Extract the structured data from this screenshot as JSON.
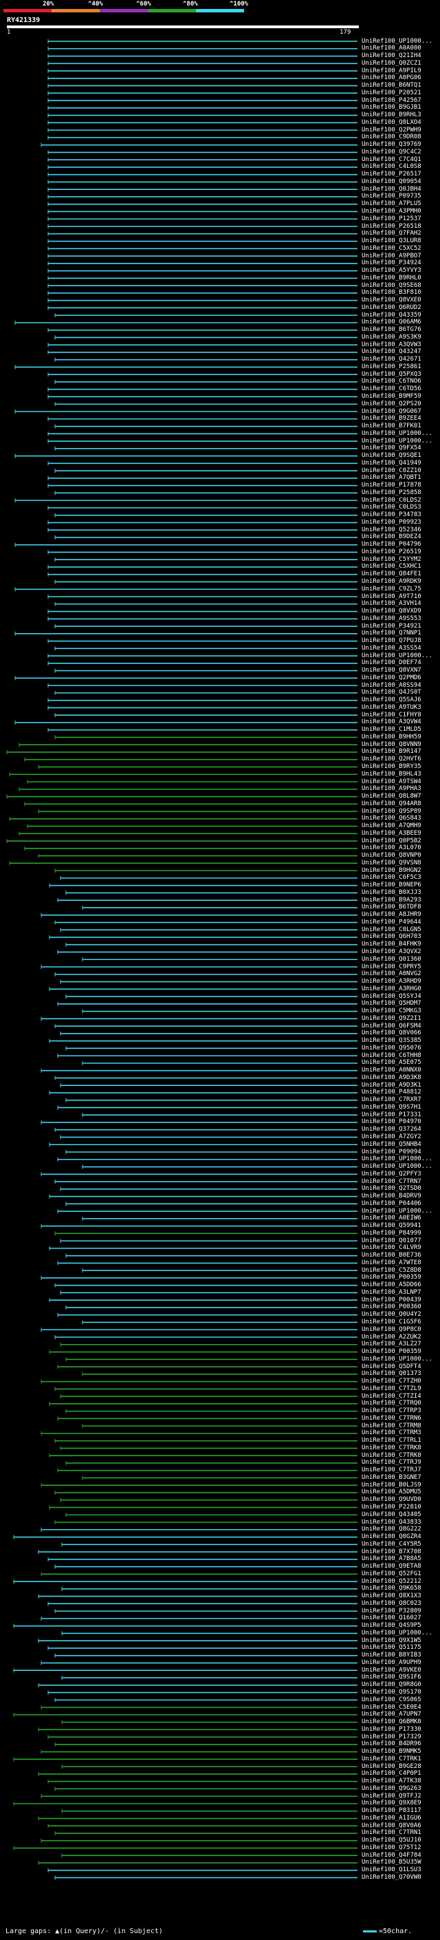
{
  "legend": {
    "labels": [
      "20%",
      "^40%",
      "^60%",
      "^80%",
      "^100%"
    ],
    "colors": [
      "#e0202a",
      "#e6822a",
      "#9b2fb8",
      "#29a62b",
      "#3fd5ee"
    ]
  },
  "query": {
    "title": "RY421339",
    "start": "1",
    "end": "179"
  },
  "footer": {
    "gaps_text": "Large gaps: ▲(in Query)/- (in Subject)",
    "scale_text": "=50char."
  },
  "hits": [
    "UniRef100_UP1000...",
    "UniRef100_A0A000",
    "UniRef100_Q21IH4",
    "UniRef100_Q0ZCZ1",
    "UniRef100_A9PIL9",
    "UniRef100_A0PG06",
    "UniRef100_B6NTQ1",
    "UniRef100_P20521",
    "UniRef100_P42567",
    "UniRef100_B9GJB1",
    "UniRef100_B9RHL3",
    "UniRef100_Q8LXO4",
    "UniRef100_Q2PWH9",
    "UniRef100_C9DR08",
    "UniRef100_Q39769",
    "UniRef100_Q9C4C2",
    "UniRef100_C7C4Q1",
    "UniRef100_C4L0S8",
    "UniRef100_P26517",
    "UniRef100_Q09054",
    "UniRef100_Q0JBH4",
    "UniRef100_P09735",
    "UniRef100_A7PLU5",
    "UniRef100_A3PMH0",
    "UniRef100_P12537",
    "UniRef100_P26518",
    "UniRef100_Q7FAH2",
    "UniRef100_Q3LUR8",
    "UniRef100_C5XC52",
    "UniRef100_A9PBO7",
    "UniRef100_P34924",
    "UniRef100_A5YVY3",
    "UniRef100_B9RHL0",
    "UniRef100_Q9SE68",
    "UniRef100_B3F810",
    "UniRef100_Q8VXE0",
    "UniRef100_Q6RUD2",
    "UniRef100_Q43359",
    "UniRef100_Q06AM6",
    "UniRef100_B6TG76",
    "UniRef100_A9S3K9",
    "UniRef100_A3QVW3",
    "UniRef100_Q43247",
    "UniRef100_Q42671",
    "UniRef100_P25861",
    "UniRef100_Q5PXQ3",
    "UniRef100_C6TNO6",
    "UniRef100_C6TD56",
    "UniRef100_B9MF59",
    "UniRef100_Q2PS20",
    "UniRef100_Q9G067",
    "UniRef100_B9ZEE4",
    "UniRef100_B7FK01",
    "UniRef100_UP1000...",
    "UniRef100_UP1000...",
    "UniRef100_Q9FX54",
    "UniRef100_Q9SQE1",
    "UniRef100_Q41949",
    "UniRef100_C0ZZ10",
    "UniRef100_A7QBT1",
    "UniRef100_P17878",
    "UniRef100_P25858",
    "UniRef100_C0LDS2",
    "UniRef100_C0LDS3",
    "UniRef100_P34783",
    "UniRef100_P09923",
    "UniRef100_Q52346",
    "UniRef100_B9DEZ4",
    "UniRef100_P04796",
    "UniRef100_P26519",
    "UniRef100_C5YYM2",
    "UniRef100_C5XHC1",
    "UniRef100_Q84FE1",
    "UniRef100_A9RDK9",
    "UniRef100_C9ZL75",
    "UniRef100_A9T710",
    "UniRef100_A3VH14",
    "UniRef100_Q8VXD9",
    "UniRef100_A9S553",
    "UniRef100_P34921",
    "UniRef100_Q7NNP1",
    "UniRef100_Q7PUJ8",
    "UniRef100_A3SS54",
    "UniRef100_UP1000...",
    "UniRef100_D0EF74",
    "UniRef100_Q8VXN7",
    "UniRef100_Q2PMD6",
    "UniRef100_A0SS94",
    "UniRef100_Q4JS0T",
    "UniRef100_Q5SAJ6",
    "UniRef100_A9TUK3",
    "UniRef100_C1FHY8",
    "UniRef100_A3QVW4",
    "UniRef100_C1MLD5",
    "UniRef100_B9HH59",
    "UniRef100_Q8VNN9",
    "UniRef100_B9R147",
    "UniRef100_Q2HVT6",
    "UniRef100_B9RY35",
    "UniRef100_B9HL43",
    "UniRef100_A9TSW4",
    "UniRef100_A9PHA3",
    "UniRef100_Q8L8W7",
    "UniRef100_Q94AR8",
    "UniRef100_Q9SP89",
    "UniRef100_Q6S843",
    "UniRef100_A7QMH9",
    "UniRef100_A3BEE9",
    "UniRef100_Q0P5B2",
    "UniRef100_A3L070",
    "UniRef100_Q8VNP0",
    "UniRef100_Q9VSN8",
    "UniRef100_B9HGN2",
    "UniRef100_C6F5C3",
    "UniRef100_B9NEP6",
    "UniRef100_B0XJJ3",
    "UniRef100_B9A293",
    "UniRef100_B6TDF8",
    "UniRef100_A8JHR9",
    "UniRef100_P49644",
    "UniRef100_C0LGN5",
    "UniRef100_Q6H703",
    "UniRef100_B4FHK9",
    "UniRef100_A3QVX2",
    "UniRef100_Q01360",
    "UniRef100_C9PRY5",
    "UniRef100_A0NVG2",
    "UniRef100_A3RHD9",
    "UniRef100_A3RHG0",
    "UniRef100_Q5SYJ4",
    "UniRef100_Q5HDM7",
    "UniRef100_C5MKG3",
    "UniRef100_Q9Z2I1",
    "UniRef100_Q6FSM4",
    "UniRef100_Q8V066",
    "UniRef100_Q3S385",
    "UniRef100_Q95076",
    "UniRef100_C6THH8",
    "UniRef100_A5E075",
    "UniRef100_A0NNX0",
    "UniRef100_A9D3K8",
    "UniRef100_A9D3K1",
    "UniRef100_P48812",
    "UniRef100_C7RXR7",
    "UniRef100_Q9S7H1",
    "UniRef100_P17331",
    "UniRef100_P04970",
    "UniRef100_Q37264",
    "UniRef100_A7ZGY2",
    "UniRef100_Q5NHB4",
    "UniRef100_P09094",
    "UniRef100_UP1000...",
    "UniRef100_UP1000...",
    "UniRef100_Q2PFY3",
    "UniRef100_C7TRN7",
    "UniRef100_Q2TSD0",
    "UniRef100_B4DRV9",
    "UniRef100_P04406",
    "UniRef100_UP1000...",
    "UniRef100_A0EIW6",
    "UniRef100_Q59941",
    "UniRef100_P84999",
    "UniRef100_Q01077",
    "UniRef100_C4LVR9",
    "UniRef100_B0E736",
    "UniRef100_A7WTE8",
    "UniRef100_C5Z8D8",
    "UniRef100_P00359",
    "UniRef100_A5DD66",
    "UniRef100_A3LNP7",
    "UniRef100_P00439",
    "UniRef100_P00360",
    "UniRef100_Q0U4Y2",
    "UniRef100_C1G5F6",
    "UniRef100_Q9P8C0",
    "UniRef100_A2ZUK2",
    "UniRef100_A3LZ27",
    "UniRef100_P00359",
    "UniRef100_UP1000...",
    "UniRef100_Q5DFT4",
    "UniRef100_Q01373",
    "UniRef100_C7TZH0",
    "UniRef100_C7TZL9",
    "UniRef100_C7TZI4",
    "UniRef100_C7TRQ0",
    "UniRef100_C7TRP3",
    "UniRef100_C7TRN6",
    "UniRef100_C7TRM8",
    "UniRef100_C7TRM3",
    "UniRef100_C7TRL1",
    "UniRef100_C7TRK8",
    "UniRef100_C7TRK0",
    "UniRef100_C7TRJ9",
    "UniRef100_C7TRJ7",
    "UniRef100_B3GNE7",
    "UniRef100_B0LJS9",
    "UniRef100_A5DMU5",
    "UniRef100_Q9UVD0",
    "UniRef100_P22810",
    "UniRef100_Q43405",
    "UniRef100_Q43833",
    "UniRef100_Q8G222",
    "UniRef100_Q0GZR4",
    "UniRef100_C4Y5R5",
    "UniRef100_B7X708",
    "UniRef100_A7B8A5",
    "UniRef100_Q9ETA8",
    "UniRef100_Q52FG1",
    "UniRef100_Q52212",
    "UniRef100_Q9K658",
    "UniRef100_Q8X1X3",
    "UniRef100_Q8C023",
    "UniRef100_P32809",
    "UniRef100_Q16027",
    "UniRef100_Q4S9P5",
    "UniRef100_UP1000...",
    "UniRef100_Q9X1W5",
    "UniRef100_Q51175",
    "UniRef100_B8YIB3",
    "UniRef100_A9UPH9",
    "UniRef100_A9VKE0",
    "UniRef100_Q9S1F6",
    "UniRef100_Q9R8G0",
    "UniRef100_Q9S170",
    "UniRef100_C9S065",
    "UniRef100_C5E0E4",
    "UniRef100_A7UPN7",
    "UniRef100_Q6BMK0",
    "UniRef100_P17330",
    "UniRef100_P17329",
    "UniRef100_B4DR96",
    "UniRef100_B9NMK5",
    "UniRef100_C7TRK1",
    "UniRef100_B9GE28",
    "UniRef100_C4P0P1",
    "UniRef100_A7TK38",
    "UniRef100_Q9G263",
    "UniRef100_Q9TFJ2",
    "UniRef100_Q9X8E9",
    "UniRef100_P83117",
    "UniRef100_A1IGU6",
    "UniRef100_Q8V0A6",
    "UniRef100_C7TRN1",
    "UniRef100_Q5UJ10",
    "UniRef100_Q75T12",
    "UniRef100_Q4F784",
    "UniRef100_B5U35W",
    "UniRef100_Q1LSU3",
    "UniRef100_Q70VW0"
  ]
}
